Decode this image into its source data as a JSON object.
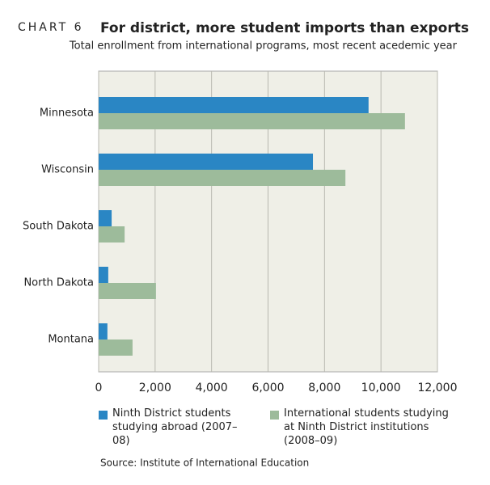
{
  "chart_data": {
    "type": "hbar",
    "chart_label": "CHART 6",
    "title": "For district, more student imports than exports",
    "subtitle": "Total enrollment from international programs, most recent acedemic year",
    "source": "Source: Institute of International Education",
    "categories": [
      "Minnesota",
      "Wisconsin",
      "South Dakota",
      "North Dakota",
      "Montana"
    ],
    "series": [
      {
        "name": "Ninth District students studying abroad (2007–08)",
        "color": "#2a86c4",
        "values": [
          9560,
          7590,
          460,
          340,
          310
        ]
      },
      {
        "name": "International students studying at Ninth District institutions (2008–09)",
        "color": "#9dbb9b",
        "values": [
          10850,
          8740,
          920,
          2030,
          1200
        ]
      }
    ],
    "xlim": [
      0,
      12000
    ],
    "xticks": [
      0,
      {
        "value": 2000,
        "label": "2,000"
      },
      {
        "value": 4000,
        "label": "4,000"
      },
      {
        "value": 6000,
        "label": "6,000"
      },
      {
        "value": 8000,
        "label": "8,000"
      },
      {
        "value": 10000,
        "label": "10,000"
      },
      {
        "value": 12000,
        "label": "12,000"
      }
    ],
    "grid": true
  }
}
